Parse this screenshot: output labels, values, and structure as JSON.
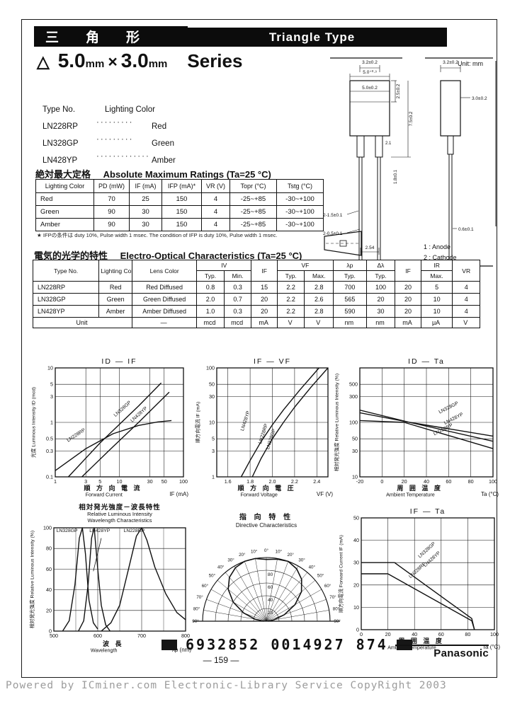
{
  "header": {
    "jp": "三角形",
    "en": "Triangle Type"
  },
  "series_title": {
    "tri": "△",
    "v1": "5.0",
    "u1": "mm",
    "times": "×",
    "v2": "3.0",
    "u2": "mm",
    "word": "Series"
  },
  "type_list": {
    "header_left": "Type No.",
    "header_right": "Lighting Color",
    "items": [
      {
        "no": "LN228RP",
        "dots": "·········",
        "color": "Red"
      },
      {
        "no": "LN328GP",
        "dots": "·········",
        "color": "Green"
      },
      {
        "no": "LN428YP",
        "dots": "·············",
        "color": "Amber"
      }
    ]
  },
  "drawing": {
    "unit": "Unit: mm",
    "front": [
      "3.2±0.2",
      "5.0⁺⁰·³",
      "5.0±0.2",
      "2.5±0.2",
      "7.5±0.2",
      "2.1",
      "1.8±0.1",
      "2-1.5±0.1",
      "2-0.5±0.1",
      "2.54",
      "1",
      "2"
    ],
    "side": [
      "3.2±0.2",
      "3.0±0.2",
      "0.6±0.1"
    ],
    "legend": [
      "1 : Anode",
      "2 : Cathode"
    ]
  },
  "abs_max": {
    "heading_jp": "絶対最大定格",
    "heading_en": "Absolute Maximum Ratings (Ta=25 °C)",
    "headers": [
      "Lighting Color",
      "PD (mW)",
      "IF (mA)",
      "IFP (mA)*",
      "VR (V)",
      "Topr (°C)",
      "Tstg (°C)"
    ],
    "rows": [
      [
        "Red",
        "70",
        "25",
        "150",
        "4",
        "-25~+85",
        "-30~+100"
      ],
      [
        "Green",
        "90",
        "30",
        "150",
        "4",
        "-25~+85",
        "-30~+100"
      ],
      [
        "Amber",
        "90",
        "30",
        "150",
        "4",
        "-25~+85",
        "-30~+100"
      ]
    ],
    "footnote": "★ IFPの条件は duty 10%, Pulse width 1 msec.      The condition of IFP is duty 10%, Pulse width 1 msec."
  },
  "eo_char": {
    "heading_jp": "電気的光学的特性",
    "heading_en": "Electro-Optical Characteristics (Ta=25 °C)",
    "header_row1": [
      {
        "label": "Type No.",
        "rs": 2
      },
      {
        "label": "Lighting Color",
        "rs": 2
      },
      {
        "label": "Lens Color",
        "rs": 2
      },
      {
        "label": "IV",
        "cs": 2
      },
      {
        "label": "IF",
        "rs": 2
      },
      {
        "label": "VF",
        "cs": 2
      },
      {
        "label": "λp"
      },
      {
        "label": "Δλ"
      },
      {
        "label": "IF",
        "rs": 2
      },
      {
        "label": "IR"
      },
      {
        "label": "VR",
        "rs": 2
      }
    ],
    "header_row2": [
      "Typ.",
      "Min.",
      "Typ.",
      "Max.",
      "Typ.",
      "Typ.",
      "Max."
    ],
    "rows": [
      [
        "LN228RP",
        "Red",
        "Red Diffused",
        "0.8",
        "0.3",
        "15",
        "2.2",
        "2.8",
        "700",
        "100",
        "20",
        "5",
        "4"
      ],
      [
        "LN328GP",
        "Green",
        "Green Diffused",
        "2.0",
        "0.7",
        "20",
        "2.2",
        "2.6",
        "565",
        "20",
        "20",
        "10",
        "4"
      ],
      [
        "LN428YP",
        "Amber",
        "Amber Diffused",
        "1.0",
        "0.3",
        "20",
        "2.2",
        "2.8",
        "590",
        "30",
        "20",
        "10",
        "4"
      ]
    ],
    "unit_row": [
      "Unit",
      "—",
      "mcd",
      "mcd",
      "mA",
      "V",
      "V",
      "nm",
      "nm",
      "mA",
      "μA",
      "V"
    ]
  },
  "chart_data": [
    {
      "type": "line",
      "title": "ID — IF",
      "xscale": "log",
      "xmin": 1,
      "xmax": 100,
      "xticks": [
        1,
        3,
        5,
        10,
        30,
        50,
        100
      ],
      "yscale": "log",
      "ymin": 0.1,
      "ymax": 10,
      "yticks": [
        0.1,
        0.3,
        0.5,
        1,
        3,
        5,
        10
      ],
      "xlabel1": "順 方 向 電 流",
      "xlabel2": "Forward  Current",
      "xunit": "IF (mA)",
      "ylabel": "光度  Luminous Intensity   ID (mcd)",
      "series": [
        {
          "name": "LN328GP",
          "points": [
            [
              1.6,
              0.1
            ],
            [
              5,
              0.42
            ],
            [
              20,
              2.0
            ],
            [
              45,
              5.3
            ]
          ]
        },
        {
          "name": "LN428YP",
          "points": [
            [
              2.6,
              0.1
            ],
            [
              8,
              0.36
            ],
            [
              20,
              1.0
            ],
            [
              60,
              3.6
            ]
          ]
        },
        {
          "name": "LN228RP",
          "points": [
            [
              1,
              0.13
            ],
            [
              3,
              0.33
            ],
            [
              8,
              0.62
            ],
            [
              20,
              0.88
            ],
            [
              40,
              1.02
            ],
            [
              65,
              1.08
            ]
          ]
        }
      ],
      "labels": [
        {
          "text": "LN328GP",
          "fx": 0.47,
          "fy": 0.45,
          "rot": -42
        },
        {
          "text": "LN428YP",
          "fx": 0.6,
          "fy": 0.5,
          "rot": -42
        },
        {
          "text": "LN228RP",
          "fx": 0.1,
          "fy": 0.68,
          "rot": -33
        }
      ]
    },
    {
      "type": "line",
      "title": "IF — VF",
      "xscale": "linear",
      "xmin": 1.5,
      "xmax": 2.5,
      "xticks": [
        1.6,
        1.8,
        2.0,
        2.2,
        2.4
      ],
      "xtick_labels": [
        "1.6",
        "1.8",
        "2.0",
        "2.2",
        "2.4"
      ],
      "yscale": "log",
      "ymin": 1,
      "ymax": 100,
      "yticks": [
        1,
        3,
        5,
        10,
        30,
        50,
        100
      ],
      "xlabel1": "順 方 向 電 圧",
      "xlabel2": "Forward  Voltage",
      "xunit": "VF (V)",
      "ylabel": "順方向電流   IF (mA)",
      "series": [
        {
          "name": "LN428YP",
          "points": [
            [
              1.72,
              1
            ],
            [
              1.8,
              2
            ],
            [
              1.9,
              4.5
            ],
            [
              2.0,
              9
            ],
            [
              2.1,
              17
            ],
            [
              2.25,
              40
            ],
            [
              2.42,
              100
            ]
          ]
        },
        {
          "name": "LN228RP LN328GP",
          "points": [
            [
              1.82,
              1
            ],
            [
              1.9,
              2.2
            ],
            [
              2.0,
              5
            ],
            [
              2.1,
              10
            ],
            [
              2.2,
              19
            ],
            [
              2.35,
              45
            ],
            [
              2.5,
              100
            ]
          ]
        }
      ],
      "labels": [
        {
          "text": "LN428YP",
          "fx": 0.24,
          "fy": 0.58,
          "rot": -72
        },
        {
          "text": "LN228RP",
          "fx": 0.4,
          "fy": 0.7,
          "rot": -72
        },
        {
          "text": "LN328GP",
          "fx": 0.47,
          "fy": 0.75,
          "rot": -72
        }
      ]
    },
    {
      "type": "line",
      "title": "ID — Ta",
      "xscale": "linear",
      "xmin": -20,
      "xmax": 100,
      "xticks": [
        -20,
        0,
        20,
        40,
        60,
        80,
        100
      ],
      "yscale": "log",
      "ymin": 10,
      "ymax": 1000,
      "yticks": [
        10,
        30,
        50,
        100,
        300,
        500
      ],
      "xlabel1": "周 囲 温 度",
      "xlabel2": "Ambient  Temperature",
      "xunit": "Ta (°C)",
      "ylabel": "相対発光強度  Relative Luminous Intensity  (%)",
      "series": [
        {
          "name": "LN328GP",
          "points": [
            [
              -20,
              150
            ],
            [
              25,
              100
            ],
            [
              100,
              56
            ]
          ]
        },
        {
          "name": "LN428YP",
          "points": [
            [
              -20,
              168
            ],
            [
              25,
              100
            ],
            [
              100,
              45
            ]
          ]
        },
        {
          "name": "LN228RP",
          "points": [
            [
              -20,
              108
            ],
            [
              20,
              100
            ],
            [
              100,
              33
            ]
          ]
        }
      ],
      "labels": [
        {
          "text": "LN328GP",
          "fx": 0.6,
          "fy": 0.42,
          "rot": -27
        },
        {
          "text": "LN428YP",
          "fx": 0.64,
          "fy": 0.52,
          "rot": -27
        },
        {
          "text": "LN228RP",
          "fx": 0.56,
          "fy": 0.62,
          "rot": -27
        }
      ]
    },
    {
      "type": "line",
      "title_lines": [
        "相対発光強度－波長特性",
        "Relative   Luminous   Intensity",
        "Wavelength      Characteristics"
      ],
      "xscale": "linear",
      "xmin": 500,
      "xmax": 800,
      "xticks": [
        500,
        600,
        700,
        800
      ],
      "xminor": [
        550,
        650,
        750
      ],
      "yscale": "linear",
      "ymin": 0,
      "ymax": 100,
      "yticks": [
        0,
        20,
        40,
        60,
        80,
        100
      ],
      "xlabel1": "波      長",
      "xlabel2": "Wavelength",
      "xunit": "λp (nm)",
      "ylabel": "相対発光強度  Relative Luminous Intensity  (%)",
      "series": [
        {
          "name": "LN328GP",
          "points": [
            [
              520,
              0
            ],
            [
              535,
              10
            ],
            [
              548,
              45
            ],
            [
              558,
              90
            ],
            [
              565,
              100
            ],
            [
              572,
              75
            ],
            [
              580,
              30
            ],
            [
              590,
              8
            ],
            [
              600,
              2
            ]
          ]
        },
        {
          "name": "LN428YP",
          "points": [
            [
              556,
              0
            ],
            [
              568,
              10
            ],
            [
              578,
              45
            ],
            [
              586,
              90
            ],
            [
              592,
              100
            ],
            [
              600,
              60
            ],
            [
              608,
              25
            ],
            [
              618,
              6
            ],
            [
              628,
              0
            ]
          ]
        },
        {
          "name": "LN228RP",
          "points": [
            [
              608,
              0
            ],
            [
              630,
              8
            ],
            [
              650,
              25
            ],
            [
              670,
              60
            ],
            [
              688,
              92
            ],
            [
              700,
              100
            ],
            [
              712,
              88
            ],
            [
              730,
              62
            ],
            [
              755,
              36
            ],
            [
              780,
              18
            ],
            [
              800,
              11
            ]
          ]
        }
      ],
      "labels": [
        {
          "text": "LN328GP",
          "fx": 0.02,
          "fy": 0.04,
          "rot": 0
        },
        {
          "text": "LN428YP",
          "fx": 0.27,
          "fy": 0.04,
          "rot": 0
        },
        {
          "text": "LN228RP",
          "fx": 0.53,
          "fy": 0.04,
          "rot": 0
        }
      ],
      "ann_lines": [
        [
          0.36,
          0.1,
          0.3,
          0.42
        ]
      ]
    },
    {
      "type": "polar",
      "title_lines": [
        "指   向   特   性",
        "Directive    Characteristics"
      ],
      "rings": [
        20,
        40,
        60,
        80,
        100
      ],
      "ring_labels": [
        80,
        60,
        40,
        20
      ],
      "angle_step": 10,
      "lobe": [
        [
          -90,
          4
        ],
        [
          -80,
          18
        ],
        [
          -70,
          38
        ],
        [
          -60,
          60
        ],
        [
          -50,
          78
        ],
        [
          -40,
          90
        ],
        [
          -30,
          97
        ],
        [
          -20,
          100
        ],
        [
          -10,
          100
        ],
        [
          0,
          97
        ],
        [
          10,
          99
        ],
        [
          20,
          100
        ],
        [
          30,
          95
        ],
        [
          40,
          86
        ],
        [
          50,
          72
        ],
        [
          60,
          52
        ],
        [
          70,
          30
        ],
        [
          80,
          12
        ],
        [
          90,
          3
        ]
      ]
    },
    {
      "type": "line",
      "title": "IF — Ta",
      "xscale": "linear",
      "xmin": 0,
      "xmax": 100,
      "xticks": [
        0,
        20,
        40,
        60,
        80,
        100
      ],
      "yscale": "linear",
      "ymin": 0,
      "ymax": 50,
      "yticks": [
        0,
        10,
        20,
        30,
        40,
        50
      ],
      "xlabel1": "周 囲 温 度",
      "xlabel2": "Ambient  Temperature",
      "xunit": "Ta (°C)",
      "ylabel": "順方向電流  Forward Current  IF (mA)",
      "series": [
        {
          "name": "LN328GP/LN428YP",
          "points": [
            [
              0,
              30
            ],
            [
              25,
              30
            ],
            [
              83,
              5
            ],
            [
              85,
              0
            ]
          ]
        },
        {
          "name": "LN228RP",
          "points": [
            [
              0,
              25
            ],
            [
              20,
              25
            ],
            [
              83,
              4
            ],
            [
              85,
              0
            ]
          ]
        }
      ],
      "labels": [
        {
          "text": "LN328GP",
          "fx": 0.44,
          "fy": 0.36,
          "rot": -42
        },
        {
          "text": "LN428YP",
          "fx": 0.48,
          "fy": 0.44,
          "rot": -42
        },
        {
          "text": "LN228RP",
          "fx": 0.37,
          "fy": 0.54,
          "rot": -42
        }
      ]
    }
  ],
  "barcode": {
    "text": "6932852 0014927 874"
  },
  "page_number": "— 159 —",
  "brand": "Panasonic",
  "footer": "Powered by ICminer.com Electronic-Library Service CopyRight 2003"
}
